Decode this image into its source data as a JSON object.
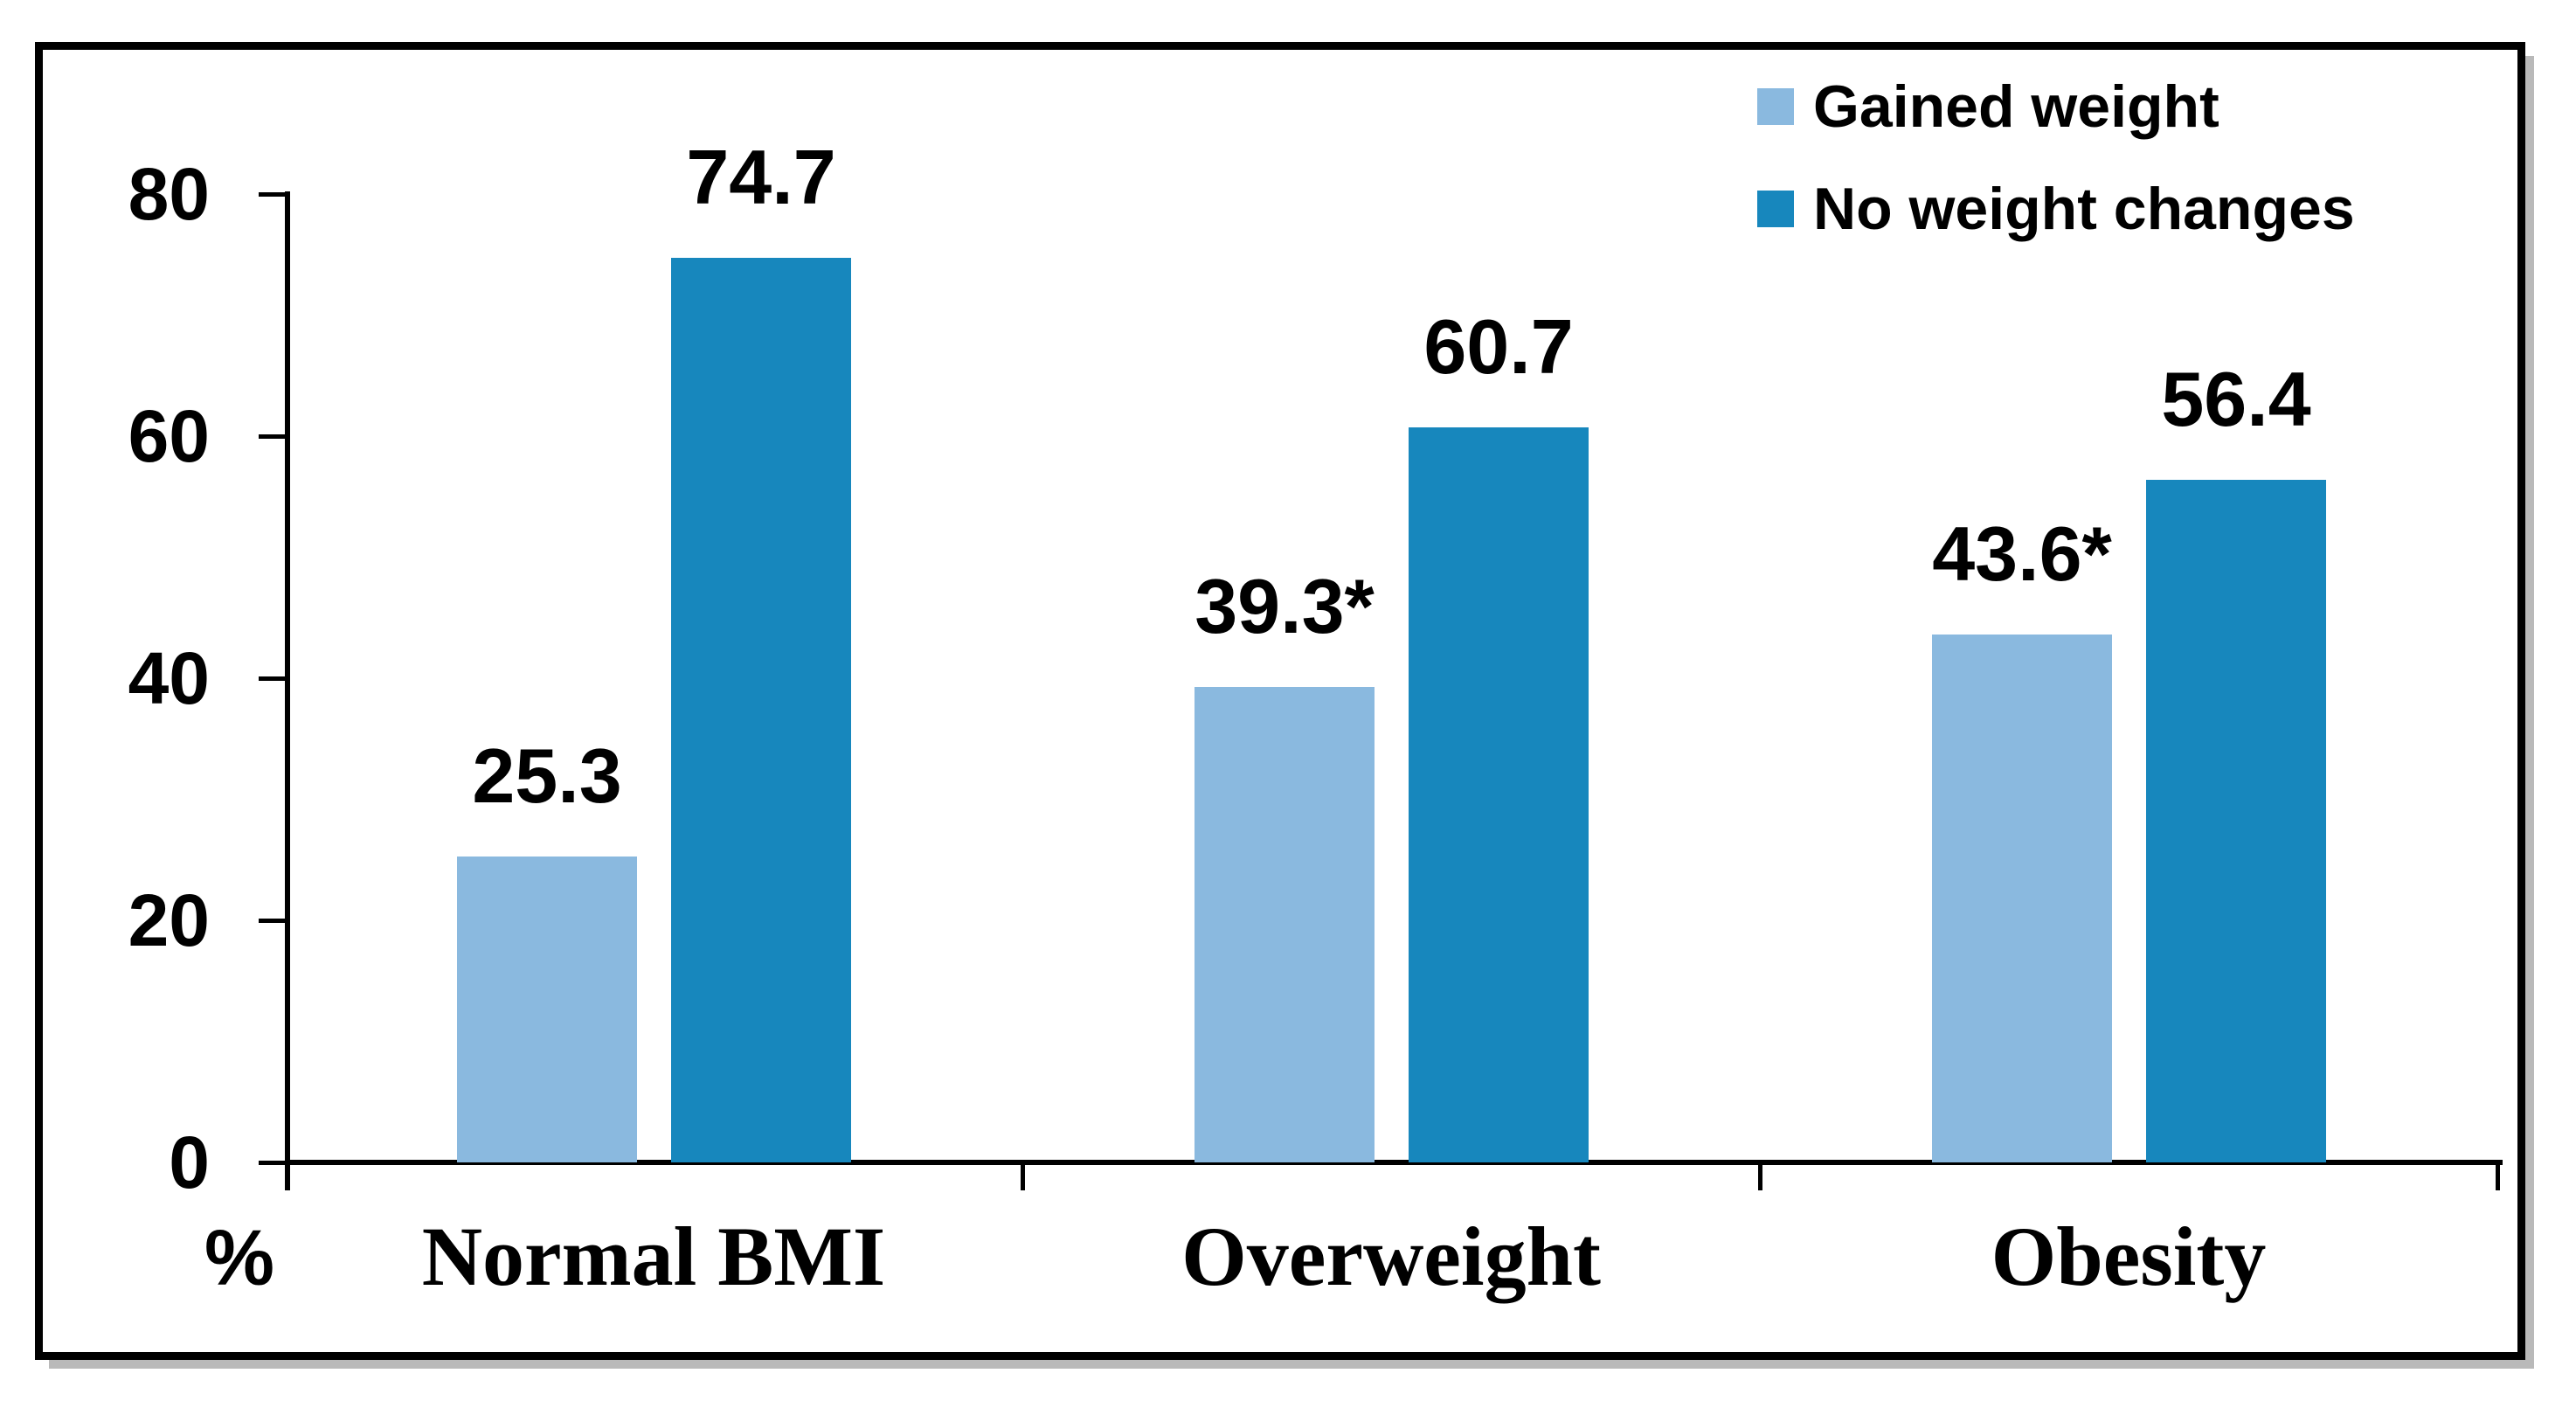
{
  "chart_data": {
    "type": "bar",
    "title": "",
    "xlabel": "",
    "ylabel": "%",
    "ylim": [
      0,
      80
    ],
    "yticks": [
      0,
      20,
      40,
      60,
      80
    ],
    "grid": false,
    "legend_position": "top-right",
    "categories": [
      "Normal BMI",
      "Overweight",
      "Obesity"
    ],
    "series": [
      {
        "name": "Gained weight",
        "color": "#8AB9DF",
        "values": [
          25.3,
          39.3,
          43.6
        ],
        "labels": [
          "25.3",
          "39.3*",
          "43.6*"
        ]
      },
      {
        "name": "No weight changes",
        "color": "#1787BD",
        "values": [
          74.7,
          60.7,
          56.4
        ],
        "labels": [
          "74.7",
          "60.7",
          "56.4"
        ]
      }
    ]
  },
  "frame": {
    "border_color": "#000000",
    "shadow_color": "#b9b9b9"
  }
}
